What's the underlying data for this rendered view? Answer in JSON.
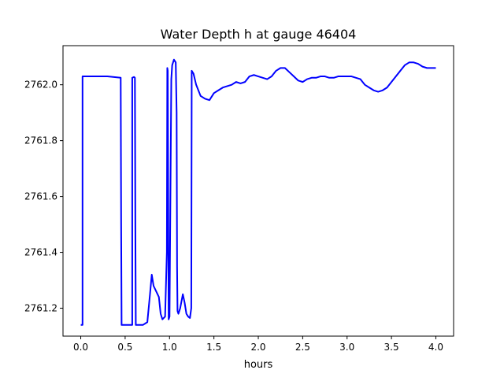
{
  "chart_data": {
    "type": "line",
    "title": "Water Depth h at gauge 46404",
    "xlabel": "hours",
    "ylabel": "",
    "xlim": [
      -0.2,
      4.2
    ],
    "ylim": [
      2761.1,
      2762.14
    ],
    "grid": false,
    "legend": "none",
    "xticks": [
      {
        "value": 0.0,
        "label": "0.0"
      },
      {
        "value": 0.5,
        "label": "0.5"
      },
      {
        "value": 1.0,
        "label": "1.0"
      },
      {
        "value": 1.5,
        "label": "1.5"
      },
      {
        "value": 2.0,
        "label": "2.0"
      },
      {
        "value": 2.5,
        "label": "2.5"
      },
      {
        "value": 3.0,
        "label": "3.0"
      },
      {
        "value": 3.5,
        "label": "3.5"
      },
      {
        "value": 4.0,
        "label": "4.0"
      }
    ],
    "yticks": [
      {
        "value": 2761.2,
        "label": "2761.2"
      },
      {
        "value": 2761.4,
        "label": "2761.4"
      },
      {
        "value": 2761.6,
        "label": "2761.6"
      },
      {
        "value": 2761.8,
        "label": "2761.8"
      },
      {
        "value": 2762.0,
        "label": "2762.0"
      }
    ],
    "series": [
      {
        "color": "#0000ff",
        "x": [
          0.0,
          0.02,
          0.02,
          0.1,
          0.3,
          0.45,
          0.455,
          0.46,
          0.47,
          0.58,
          0.58,
          0.6,
          0.61,
          0.615,
          0.62,
          0.7,
          0.75,
          0.78,
          0.8,
          0.82,
          0.85,
          0.88,
          0.9,
          0.92,
          0.95,
          0.97,
          0.975,
          0.98,
          0.99,
          1.0,
          1.01,
          1.02,
          1.03,
          1.05,
          1.07,
          1.08,
          1.085,
          1.09,
          1.1,
          1.12,
          1.15,
          1.17,
          1.19,
          1.21,
          1.23,
          1.245,
          1.25,
          1.27,
          1.3,
          1.35,
          1.4,
          1.45,
          1.5,
          1.55,
          1.6,
          1.65,
          1.7,
          1.75,
          1.8,
          1.85,
          1.9,
          1.95,
          2.0,
          2.05,
          2.1,
          2.15,
          2.2,
          2.25,
          2.3,
          2.35,
          2.4,
          2.45,
          2.5,
          2.55,
          2.6,
          2.65,
          2.7,
          2.75,
          2.8,
          2.85,
          2.9,
          2.95,
          3.0,
          3.05,
          3.1,
          3.15,
          3.2,
          3.25,
          3.3,
          3.35,
          3.4,
          3.45,
          3.5,
          3.55,
          3.6,
          3.65,
          3.7,
          3.75,
          3.8,
          3.85,
          3.9,
          3.95,
          4.0
        ],
        "y": [
          2761.14,
          2761.14,
          2762.03,
          2762.03,
          2762.03,
          2762.025,
          2761.5,
          2761.14,
          2761.14,
          2761.14,
          2762.025,
          2762.028,
          2762.025,
          2761.5,
          2761.14,
          2761.14,
          2761.15,
          2761.25,
          2761.32,
          2761.28,
          2761.26,
          2761.24,
          2761.18,
          2761.16,
          2761.17,
          2761.4,
          2762.06,
          2762.05,
          2761.16,
          2761.17,
          2761.6,
          2762.02,
          2762.07,
          2762.09,
          2762.08,
          2761.9,
          2761.35,
          2761.19,
          2761.18,
          2761.2,
          2761.25,
          2761.22,
          2761.18,
          2761.17,
          2761.165,
          2761.2,
          2762.05,
          2762.04,
          2762.0,
          2761.96,
          2761.95,
          2761.945,
          2761.97,
          2761.98,
          2761.99,
          2761.995,
          2762.0,
          2762.01,
          2762.005,
          2762.01,
          2762.03,
          2762.035,
          2762.03,
          2762.025,
          2762.02,
          2762.03,
          2762.05,
          2762.06,
          2762.06,
          2762.045,
          2762.03,
          2762.015,
          2762.01,
          2762.02,
          2762.025,
          2762.025,
          2762.03,
          2762.03,
          2762.025,
          2762.025,
          2762.03,
          2762.03,
          2762.03,
          2762.03,
          2762.025,
          2762.02,
          2762.0,
          2761.99,
          2761.98,
          2761.975,
          2761.98,
          2761.99,
          2762.01,
          2762.03,
          2762.05,
          2762.07,
          2762.08,
          2762.08,
          2762.075,
          2762.065,
          2762.06,
          2762.06,
          2762.06
        ]
      }
    ]
  }
}
